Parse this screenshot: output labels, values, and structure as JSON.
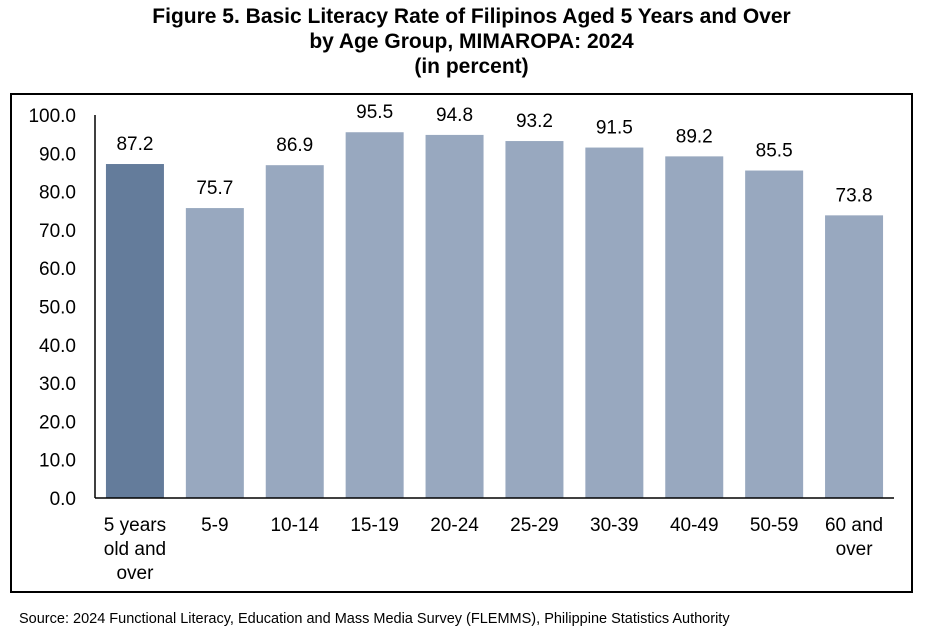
{
  "chart_data": {
    "type": "bar",
    "title": [
      "Figure 5. Basic Literacy Rate of Filipinos Aged 5 Years and Over",
      "by Age Group, MIMAROPA: 2024",
      "(in percent)"
    ],
    "categories": [
      [
        "5 years",
        "old and",
        "over"
      ],
      [
        "5-9"
      ],
      [
        "10-14"
      ],
      [
        "15-19"
      ],
      [
        "20-24"
      ],
      [
        "25-29"
      ],
      [
        "30-39"
      ],
      [
        "40-49"
      ],
      [
        "50-59"
      ],
      [
        "60 and",
        "over"
      ]
    ],
    "values": [
      87.2,
      75.7,
      86.9,
      95.5,
      94.8,
      93.2,
      91.5,
      89.2,
      85.5,
      73.8
    ],
    "data_labels": [
      "87.2",
      "75.7",
      "86.9",
      "95.5",
      "94.8",
      "93.2",
      "91.5",
      "89.2",
      "85.5",
      "73.8"
    ],
    "ylim": [
      0,
      100
    ],
    "yticks": [
      "0.0",
      "10.0",
      "20.0",
      "30.0",
      "40.0",
      "50.0",
      "60.0",
      "70.0",
      "80.0",
      "90.0",
      "100.0"
    ],
    "xlabel": "",
    "ylabel": "",
    "grid": false,
    "colors": {
      "highlight": "#647c9b",
      "bar": "#98a8bf"
    }
  },
  "source": "Source: 2024 Functional Literacy, Education and Mass Media Survey (FLEMMS), Philippine Statistics Authority"
}
